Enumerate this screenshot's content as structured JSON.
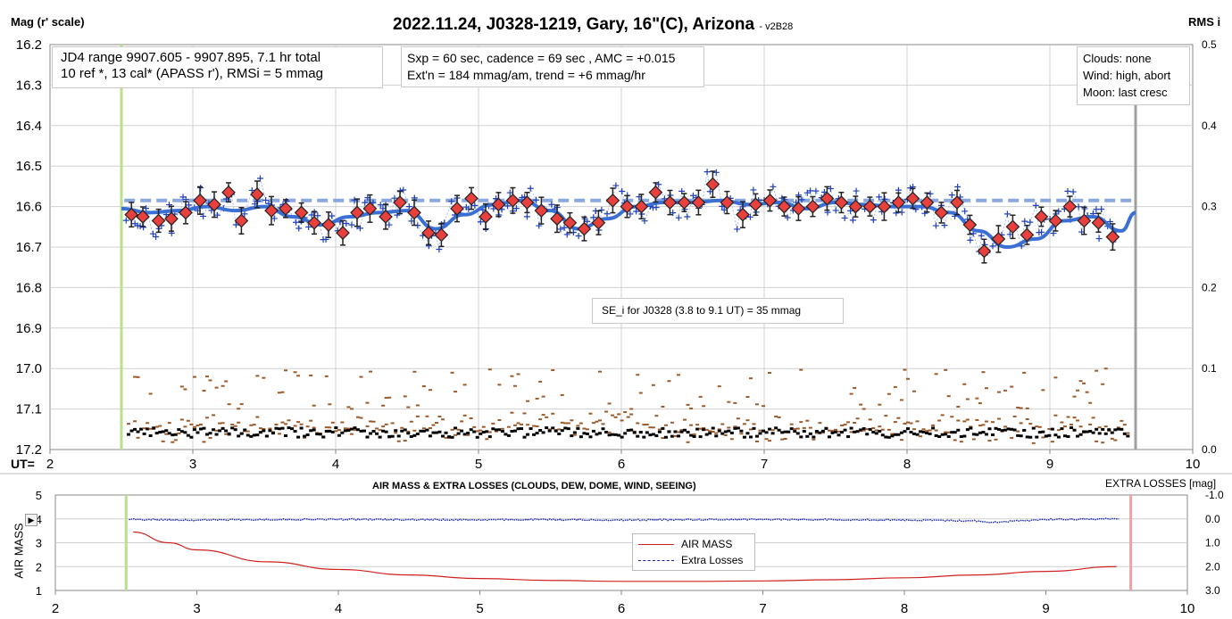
{
  "chart_data": [
    {
      "type": "scatter",
      "title": "2022.11.24, J0328-1219, Gary, 16\"(C), Arizona",
      "version": "- v2B28",
      "ylabel_left": "Mag (r' scale)",
      "ylabel_right": "RMS i",
      "xlabel": "UT=",
      "xlim": [
        2,
        10
      ],
      "ylim": [
        17.2,
        16.2
      ],
      "ylim_right": [
        0.0,
        0.5
      ],
      "x_ticks": [
        "2",
        "3",
        "4",
        "5",
        "6",
        "7",
        "8",
        "9",
        "10"
      ],
      "y_ticks": [
        "16.2",
        "16.3",
        "16.4",
        "16.5",
        "16.6",
        "16.7",
        "16.8",
        "16.9",
        "17.0",
        "17.1",
        "17.2"
      ],
      "y_right_ticks": [
        "0.5",
        "0.4",
        "0.3",
        "0.2",
        "0.1",
        "0.0"
      ],
      "grid": true,
      "info_left": [
        "JD4 range 9907.605 - 9907.895, 7.1 hr total",
        "10 ref *, 13 cal*  (APASS r'), RMSi = 5 mmag"
      ],
      "info_mid": [
        "Sxp = 60 sec, cadence = 69 sec , AMC = +0.015",
        "Ext'n = 184 mmag/am, trend = +6 mmag/hr"
      ],
      "info_right": [
        "Clouds: none",
        "Wind: high, abort",
        "Moon: last cresc"
      ],
      "annotation": "SE_i for J0328 (3.8 to 9.1 UT) = 35 mmag",
      "markers": {
        "start_line_x": 2.5,
        "end_line_x": 9.6,
        "mean_mag": 16.585
      },
      "series": [
        {
          "name": "binned",
          "x": [
            2.57,
            2.65,
            2.76,
            2.85,
            2.95,
            3.05,
            3.15,
            3.25,
            3.34,
            3.45,
            3.55,
            3.65,
            3.76,
            3.85,
            3.95,
            4.05,
            4.15,
            4.24,
            4.35,
            4.45,
            4.55,
            4.65,
            4.74,
            4.85,
            4.95,
            5.05,
            5.14,
            5.24,
            5.34,
            5.44,
            5.55,
            5.64,
            5.74,
            5.84,
            5.94,
            6.04,
            6.14,
            6.24,
            6.34,
            6.44,
            6.54,
            6.64,
            6.74,
            6.85,
            6.94,
            7.04,
            7.14,
            7.24,
            7.34,
            7.44,
            7.54,
            7.64,
            7.74,
            7.84,
            7.94,
            8.04,
            8.14,
            8.24,
            8.35,
            8.44,
            8.54,
            8.64,
            8.74,
            8.84,
            8.94,
            9.04,
            9.14,
            9.24,
            9.34,
            9.44
          ],
          "values": [
            16.62,
            16.625,
            16.635,
            16.63,
            16.615,
            16.585,
            16.595,
            16.565,
            16.635,
            16.57,
            16.61,
            16.605,
            16.615,
            16.64,
            16.645,
            16.665,
            16.615,
            16.605,
            16.625,
            16.59,
            16.615,
            16.665,
            16.67,
            16.605,
            16.58,
            16.625,
            16.595,
            16.585,
            16.59,
            16.61,
            16.63,
            16.64,
            16.655,
            16.64,
            16.585,
            16.6,
            16.6,
            16.565,
            16.59,
            16.59,
            16.59,
            16.545,
            16.59,
            16.62,
            16.595,
            16.585,
            16.6,
            16.605,
            16.6,
            16.58,
            16.59,
            16.6,
            16.6,
            16.6,
            16.59,
            16.58,
            16.59,
            16.615,
            16.59,
            16.645,
            16.71,
            16.68,
            16.65,
            16.67,
            16.625,
            16.635,
            16.6,
            16.635,
            16.64,
            16.675
          ]
        },
        {
          "name": "trend",
          "x": [
            2.5,
            2.7,
            2.9,
            3.1,
            3.3,
            3.5,
            3.7,
            3.9,
            4.1,
            4.3,
            4.5,
            4.7,
            4.9,
            5.1,
            5.3,
            5.5,
            5.7,
            5.9,
            6.1,
            6.3,
            6.5,
            6.7,
            6.9,
            7.1,
            7.3,
            7.5,
            7.7,
            7.9,
            8.1,
            8.3,
            8.5,
            8.7,
            8.9,
            9.1,
            9.3,
            9.5,
            9.6
          ],
          "values": [
            16.605,
            16.615,
            16.61,
            16.6,
            16.61,
            16.6,
            16.625,
            16.645,
            16.625,
            16.615,
            16.61,
            16.655,
            16.62,
            16.595,
            16.585,
            16.61,
            16.655,
            16.63,
            16.6,
            16.59,
            16.59,
            16.585,
            16.595,
            16.59,
            16.605,
            16.59,
            16.595,
            16.6,
            16.6,
            16.615,
            16.66,
            16.7,
            16.68,
            16.635,
            16.625,
            16.66,
            16.615
          ]
        }
      ]
    },
    {
      "type": "line",
      "title": "AIR MASS & EXTRA LOSSES (CLOUDS, DEW, DOME, WIND, SEEING)",
      "ylabel_left": "AIR MASS",
      "ylabel_right": "EXTRA LOSSES [mag]",
      "xlim": [
        2,
        10
      ],
      "ylim": [
        1,
        5
      ],
      "ylim_right": [
        3.0,
        -1.0
      ],
      "x_ticks": [
        "2",
        "3",
        "4",
        "5",
        "6",
        "7",
        "8",
        "9",
        "10"
      ],
      "y_ticks": [
        "5",
        "4",
        "3",
        "2",
        "1"
      ],
      "y_right_ticks": [
        "-1.0",
        "0.0",
        "1.0",
        "2.0",
        "3.0"
      ],
      "legend": [
        "AIR MASS",
        "Extra Losses"
      ],
      "legend_position": "center",
      "series": [
        {
          "name": "AIR MASS",
          "x": [
            2.55,
            2.8,
            3.0,
            3.5,
            4.0,
            4.5,
            5.0,
            5.5,
            6.0,
            6.5,
            7.0,
            7.5,
            8.0,
            8.5,
            9.0,
            9.5
          ],
          "values": [
            3.45,
            3.0,
            2.7,
            2.2,
            1.88,
            1.65,
            1.5,
            1.42,
            1.38,
            1.38,
            1.4,
            1.45,
            1.53,
            1.65,
            1.8,
            2.0
          ]
        },
        {
          "name": "Extra Losses",
          "x": [
            2.5,
            3.0,
            3.5,
            4.0,
            4.5,
            5.0,
            5.5,
            6.0,
            6.5,
            7.0,
            7.5,
            8.0,
            8.5,
            8.6,
            9.0,
            9.5
          ],
          "values": [
            0.02,
            0.05,
            0.03,
            0.02,
            0.03,
            0.04,
            0.03,
            0.05,
            0.03,
            0.02,
            0.03,
            0.05,
            0.08,
            0.15,
            0.02,
            0.0
          ]
        }
      ],
      "markers": {
        "start_line_x": 2.5,
        "end_line_x": 9.6
      }
    }
  ],
  "colors": {
    "binned_fill": "#e8403c",
    "raw_point": "#1f3fbf",
    "trend": "#3b6fd4",
    "mean_line": "#8aa7e0",
    "rms_brown": "#9c5a2a",
    "rms_black": "#000000",
    "start_line": "#b8e08a",
    "end_line": "#a0a0a0",
    "airmass": "#d02020",
    "extra": "#1020b0",
    "end_line_low": "#f4a0a0"
  },
  "toolbar": {
    "expand_icon": "triangle-right-icon"
  }
}
